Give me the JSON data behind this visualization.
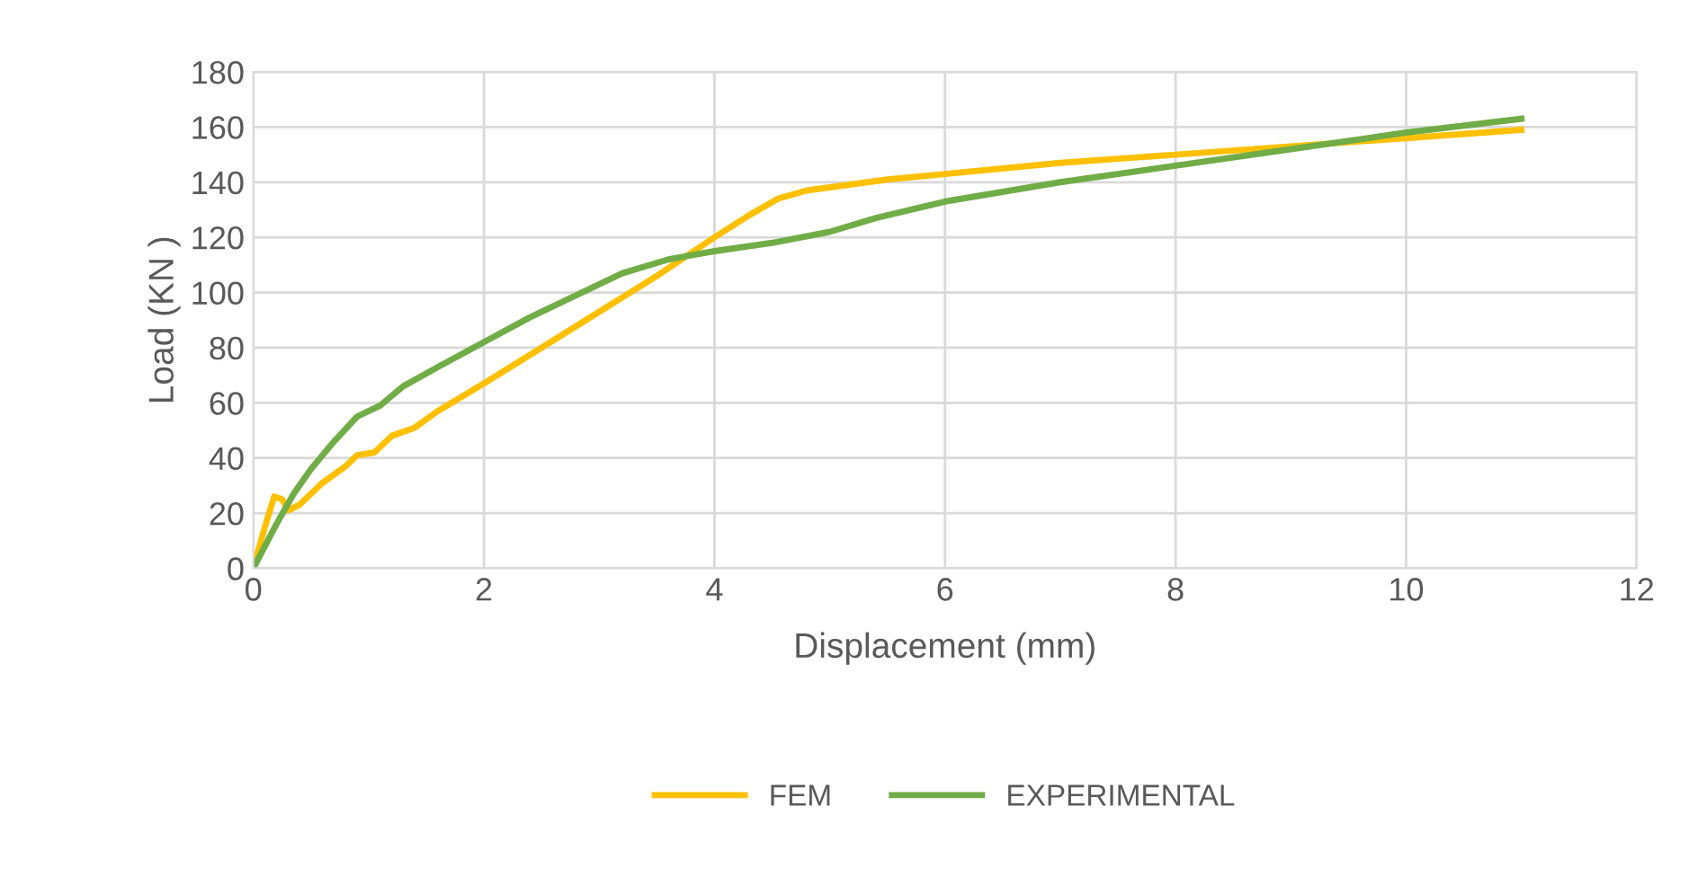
{
  "chart_data": {
    "type": "line",
    "xlabel": "Displacement (mm)",
    "ylabel": "Load (KN )",
    "xlim": [
      0,
      12
    ],
    "xticks": [
      0,
      2,
      4,
      6,
      8,
      10,
      12
    ],
    "ylim": [
      0,
      180
    ],
    "yticks": [
      0,
      20,
      40,
      60,
      80,
      100,
      120,
      140,
      160,
      180
    ],
    "grid": true,
    "legend": "bottom",
    "marker": "none",
    "line_style": "solid",
    "series": [
      {
        "name": "FEM",
        "color": "#ffc000",
        "x": [
          0,
          0.1,
          0.18,
          0.25,
          0.3,
          0.4,
          0.6,
          0.8,
          0.9,
          1.05,
          1.2,
          1.4,
          1.6,
          2,
          2.5,
          3,
          3.5,
          4,
          4.3,
          4.55,
          4.8,
          5.5,
          6,
          7,
          8,
          9,
          10,
          11
        ],
        "values": [
          0,
          15,
          26,
          25,
          21,
          23,
          31,
          37,
          41,
          42,
          48,
          51,
          57,
          67,
          80,
          93,
          106,
          120,
          128,
          134,
          137,
          141,
          143,
          147,
          150,
          153,
          156,
          159
        ]
      },
      {
        "name": "EXPERIMENTAL",
        "color": "#70ad47",
        "x": [
          0,
          0.2,
          0.35,
          0.5,
          0.7,
          0.9,
          1.1,
          1.3,
          1.6,
          2,
          2.4,
          2.8,
          3.2,
          3.6,
          4,
          4.5,
          5,
          5.4,
          6,
          7,
          8,
          9,
          10,
          11
        ],
        "values": [
          0,
          16,
          27,
          36,
          46,
          55,
          59,
          66,
          73,
          82,
          91,
          99,
          107,
          112,
          115,
          118,
          122,
          127,
          133,
          140,
          146,
          152,
          158,
          163
        ]
      }
    ]
  }
}
